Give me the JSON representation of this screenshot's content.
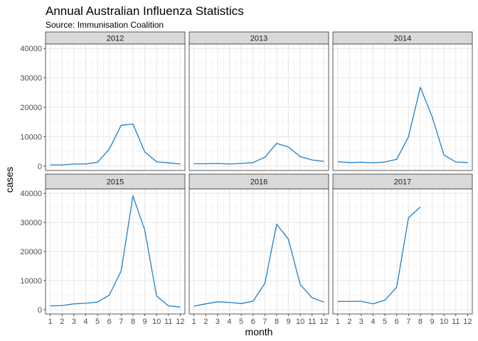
{
  "chart_data": {
    "type": "line",
    "title": "Annual Australian Influenza Statistics",
    "subtitle": "Source: Immunisation Coalition",
    "xlabel": "month",
    "ylabel": "cases",
    "x_ticks": [
      1,
      2,
      3,
      4,
      5,
      6,
      7,
      8,
      9,
      10,
      11,
      12
    ],
    "y_ticks": [
      0,
      10000,
      20000,
      30000,
      40000
    ],
    "xlim": [
      0.6,
      12.4
    ],
    "ylim": [
      -1500,
      41500
    ],
    "grid": true,
    "line_color": "#1f7fc9",
    "panels": [
      {
        "label": "2012",
        "x": [
          1,
          2,
          3,
          4,
          5,
          6,
          7,
          8,
          9,
          10,
          11,
          12
        ],
        "y": [
          400,
          400,
          700,
          700,
          1300,
          5800,
          13900,
          14300,
          4800,
          1500,
          1100,
          700
        ]
      },
      {
        "label": "2013",
        "x": [
          1,
          2,
          3,
          4,
          5,
          6,
          7,
          8,
          9,
          10,
          11,
          12
        ],
        "y": [
          800,
          800,
          900,
          700,
          900,
          1200,
          3000,
          7700,
          6500,
          3200,
          2100,
          1600
        ]
      },
      {
        "label": "2014",
        "x": [
          1,
          2,
          3,
          4,
          5,
          6,
          7,
          8,
          9,
          10,
          11,
          12
        ],
        "y": [
          1500,
          1200,
          1300,
          1100,
          1400,
          2300,
          10000,
          26800,
          16800,
          3800,
          1400,
          1200
        ]
      },
      {
        "label": "2015",
        "x": [
          1,
          2,
          3,
          4,
          5,
          6,
          7,
          8,
          9,
          10,
          11,
          12
        ],
        "y": [
          1300,
          1400,
          2000,
          2200,
          2600,
          5000,
          13300,
          39100,
          27400,
          4700,
          1300,
          900
        ]
      },
      {
        "label": "2016",
        "x": [
          1,
          2,
          3,
          4,
          5,
          6,
          7,
          8,
          9,
          10,
          11,
          12
        ],
        "y": [
          1200,
          2000,
          2700,
          2500,
          2100,
          2900,
          9000,
          29400,
          24200,
          8600,
          4100,
          2600
        ]
      },
      {
        "label": "2017",
        "x": [
          1,
          2,
          3,
          4,
          5,
          6,
          7,
          8
        ],
        "y": [
          2800,
          2800,
          2900,
          2000,
          3300,
          7700,
          31600,
          35300
        ]
      }
    ]
  }
}
